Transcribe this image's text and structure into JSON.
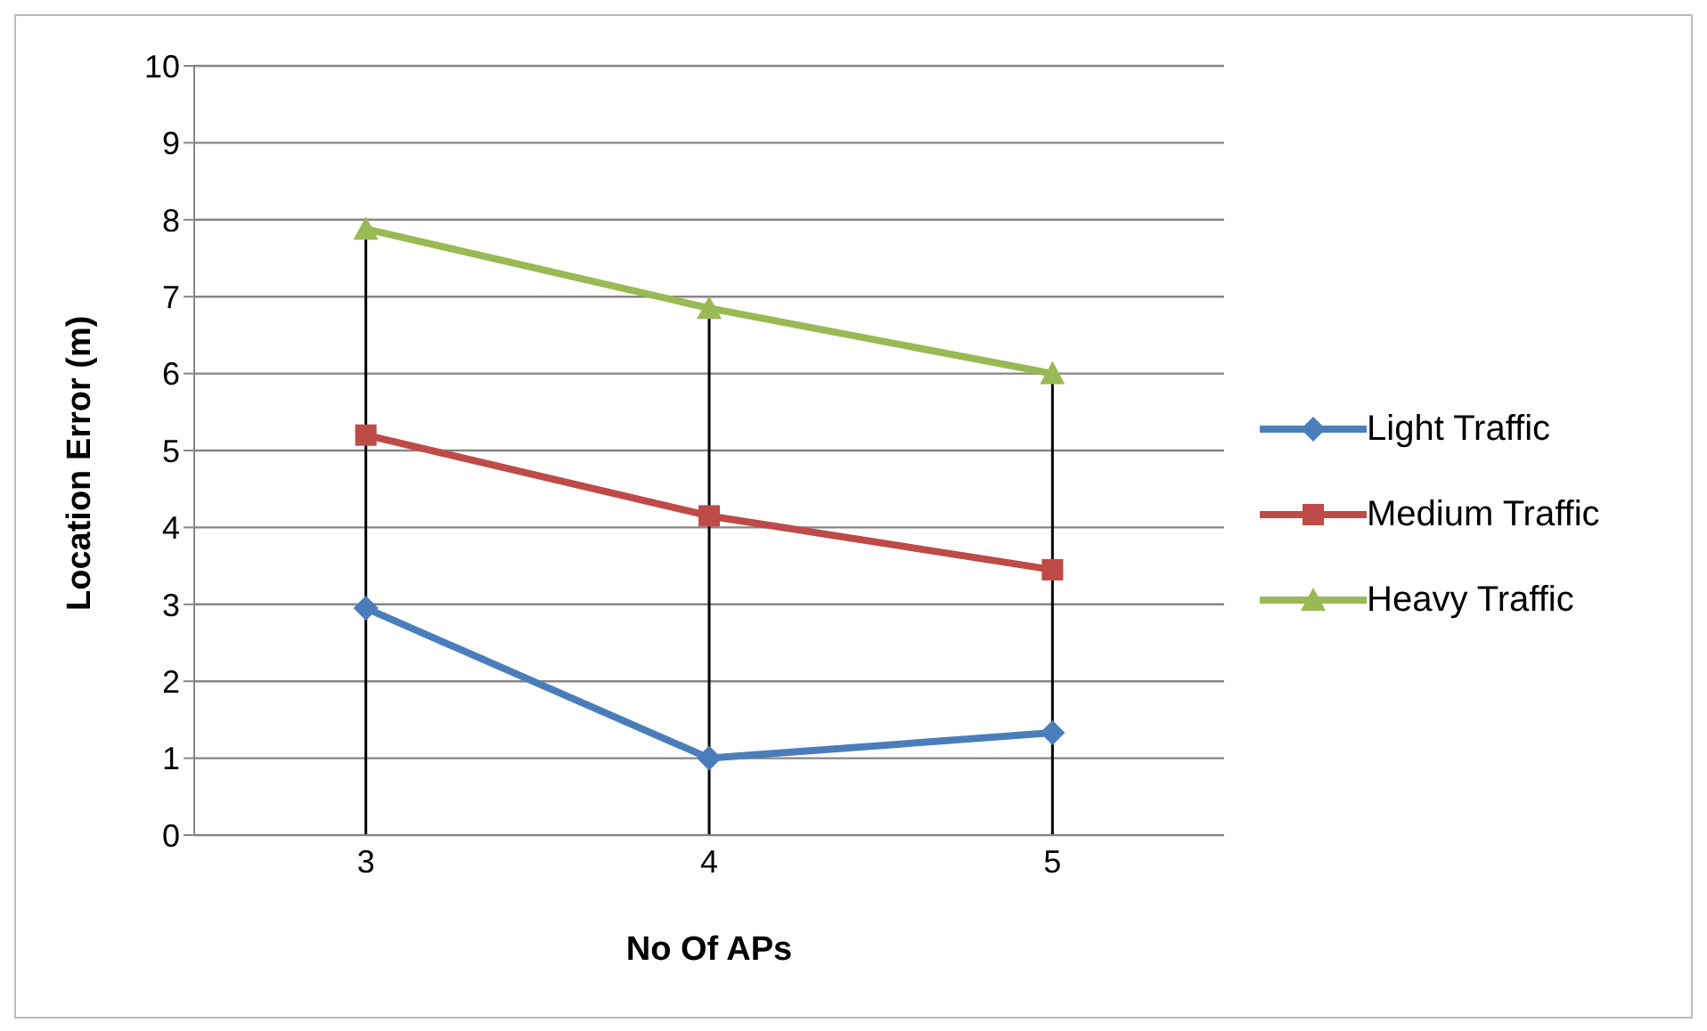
{
  "chart_data": {
    "type": "line",
    "xlabel": "No Of APs",
    "ylabel": "Location Error (m)",
    "categories": [
      "3",
      "4",
      "5"
    ],
    "series": [
      {
        "name": "Light Traffic",
        "color": "#4a7ebb",
        "marker": "diamond",
        "values": [
          2.95,
          1.0,
          1.33
        ]
      },
      {
        "name": "Medium Traffic",
        "color": "#be4b48",
        "marker": "square",
        "values": [
          5.2,
          4.15,
          3.45
        ]
      },
      {
        "name": "Heavy Traffic",
        "color": "#98b954",
        "marker": "triangle",
        "values": [
          7.88,
          6.85,
          6.0
        ]
      }
    ],
    "ylim": [
      0,
      10
    ],
    "yticks": [
      0,
      1,
      2,
      3,
      4,
      5,
      6,
      7,
      8,
      9,
      10
    ],
    "grid": "y",
    "legend": "right",
    "line_style": "solid",
    "ref_lines": [
      {
        "axis": "x",
        "value": "3",
        "color": "#000000"
      },
      {
        "axis": "x",
        "value": "4",
        "color": "#000000"
      },
      {
        "axis": "x",
        "value": "5",
        "color": "#000000"
      }
    ]
  }
}
